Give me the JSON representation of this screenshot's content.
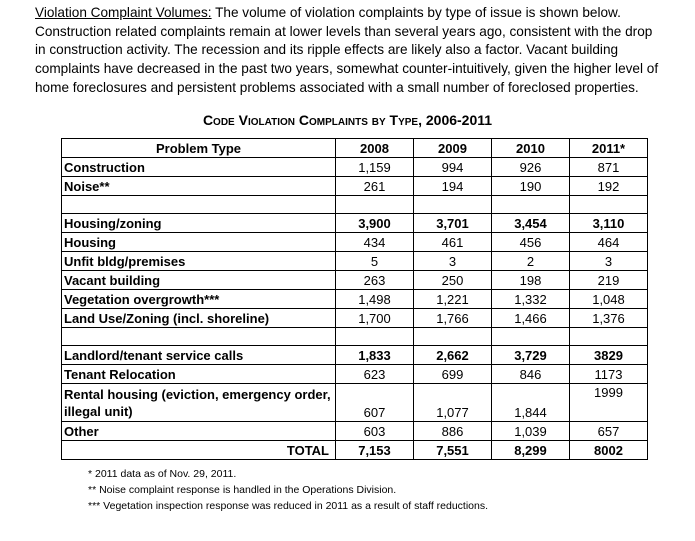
{
  "intro": {
    "heading": "Violation Complaint Volumes:",
    "lines": [
      " The volume of violation complaints by type of issue is shown below.",
      "Construction related complaints remain at lower levels than several years ago, consistent with the drop",
      "in construction activity.  The recession and its ripple effects are likely also a factor.  Vacant building",
      "complaints have decreased in the past two years, somewhat counter-intuitively, given the higher level of",
      "home foreclosures and persistent problems associated with a small number of foreclosed properties."
    ]
  },
  "table": {
    "title": "Code Violation Complaints by Type, 2006-2011",
    "headers": [
      "Problem Type",
      "2008",
      "2009",
      "2010",
      "2011*"
    ],
    "rows": [
      {
        "label": "Construction",
        "values": [
          "1,159",
          "994",
          "926",
          "871"
        ]
      },
      {
        "label": "Noise**",
        "values": [
          "261",
          "194",
          "190",
          "192"
        ]
      },
      {
        "label": "Housing/zoning",
        "values": [
          "3,900",
          "3,701",
          "3,454",
          "3,110"
        ]
      },
      {
        "label": "Housing",
        "values": [
          "434",
          "461",
          "456",
          "464"
        ]
      },
      {
        "label": "Unfit bldg/premises",
        "values": [
          "5",
          "3",
          "2",
          "3"
        ]
      },
      {
        "label": "Vacant building",
        "values": [
          "263",
          "250",
          "198",
          "219"
        ]
      },
      {
        "label": "Vegetation overgrowth***",
        "values": [
          "1,498",
          "1,221",
          "1,332",
          "1,048"
        ]
      },
      {
        "label": "Land Use/Zoning (incl. shoreline)",
        "values": [
          "1,700",
          "1,766",
          "1,466",
          "1,376"
        ]
      },
      {
        "label": "Landlord/tenant service calls",
        "values": [
          "1,833",
          "2,662",
          "3,729",
          "3829"
        ]
      },
      {
        "label": "Tenant Relocation",
        "values": [
          "623",
          "699",
          "846",
          "1173"
        ]
      },
      {
        "label": "Rental housing (eviction, emergency order, illegal unit)",
        "values": [
          "607",
          "1,077",
          "1,844",
          "1999"
        ]
      },
      {
        "label": "Other",
        "values": [
          "603",
          "886",
          "1,039",
          "657"
        ]
      }
    ],
    "total": {
      "label": "TOTAL",
      "values": [
        "7,153",
        "7,551",
        "8,299",
        "8002"
      ]
    }
  },
  "notes": [
    "* 2011 data as of Nov. 29, 2011.",
    "** Noise complaint response is handled in the Operations Division.",
    "*** Vegetation inspection response was reduced in 2011 as a result of staff reductions."
  ]
}
